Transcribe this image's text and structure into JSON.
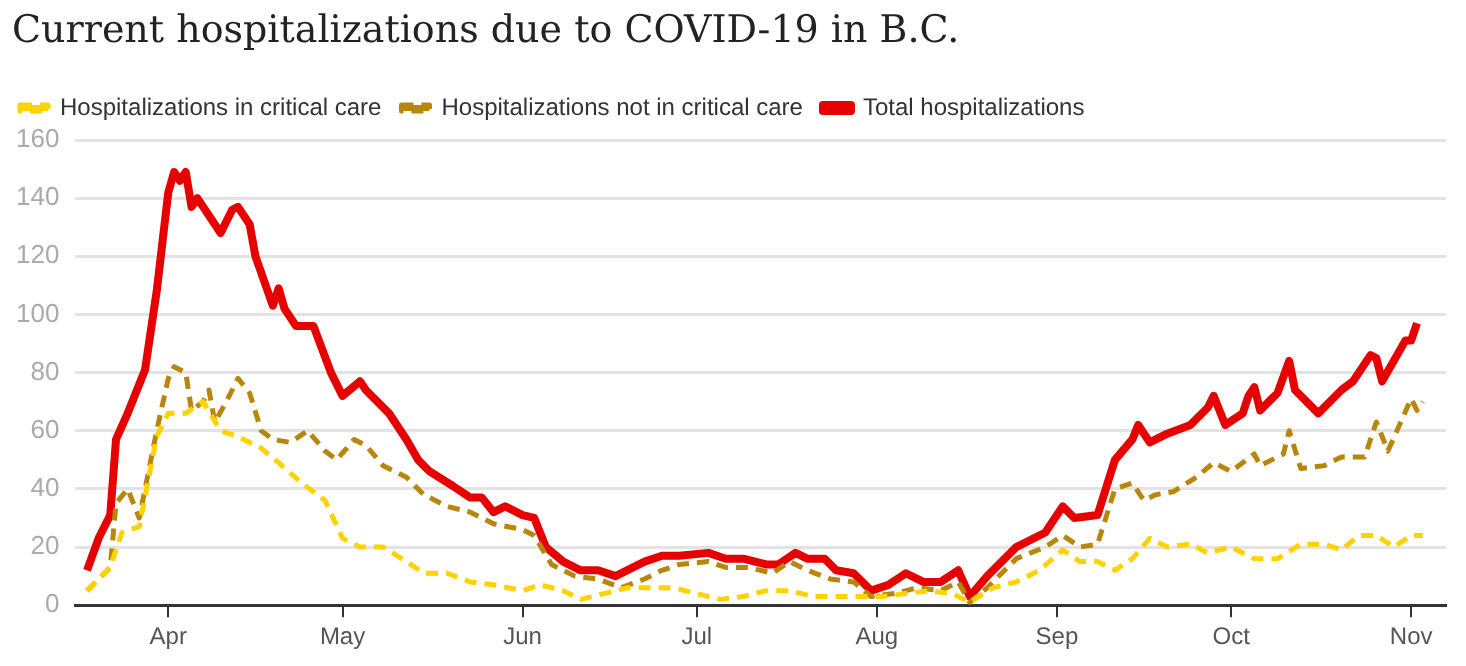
{
  "chart_data": {
    "type": "line",
    "title": "Current hospitalizations due to COVID-19 in B.C.",
    "xlim": [
      "--03-16",
      "--11-07"
    ],
    "xticks": [
      {
        "value": "--04-01",
        "label": "Apr"
      },
      {
        "value": "--05-01",
        "label": "May"
      },
      {
        "value": "--06-01",
        "label": "Jun"
      },
      {
        "value": "--07-01",
        "label": "Jul"
      },
      {
        "value": "--08-01",
        "label": "Aug"
      },
      {
        "value": "--09-01",
        "label": "Sep"
      },
      {
        "value": "--10-01",
        "label": "Oct"
      },
      {
        "value": "--11-01",
        "label": "Nov"
      }
    ],
    "ylim": [
      0,
      160
    ],
    "yticks": [
      0,
      20,
      40,
      60,
      80,
      100,
      120,
      140,
      160
    ],
    "grid": "y",
    "legend": "top left",
    "marker": "none",
    "series": [
      {
        "name": "Hospitalizations in critical care",
        "color": "#ffd200",
        "line_style": "dashed",
        "x": [
          "--03-18",
          "--03-22",
          "--03-24",
          "--03-27",
          "--03-30",
          "--04-01",
          "--04-04",
          "--04-07",
          "--04-10",
          "--04-13",
          "--04-17",
          "--04-20",
          "--04-24",
          "--04-28",
          "--05-01",
          "--05-04",
          "--05-08",
          "--05-12",
          "--05-15",
          "--05-19",
          "--05-23",
          "--05-27",
          "--06-01",
          "--06-04",
          "--06-08",
          "--06-11",
          "--06-15",
          "--06-19",
          "--06-23",
          "--06-27",
          "--07-01",
          "--07-05",
          "--07-09",
          "--07-13",
          "--07-17",
          "--07-21",
          "--07-25",
          "--07-29",
          "--08-02",
          "--08-06",
          "--08-10",
          "--08-14",
          "--08-17",
          "--08-21",
          "--08-25",
          "--08-29",
          "--09-02",
          "--09-05",
          "--09-08",
          "--09-11",
          "--09-14",
          "--09-17",
          "--09-20",
          "--09-24",
          "--09-27",
          "--10-01",
          "--10-05",
          "--10-09",
          "--10-13",
          "--10-17",
          "--10-20",
          "--10-23",
          "--10-26",
          "--10-29",
          "--11-01",
          "--11-03"
        ],
        "values": [
          5,
          13,
          25,
          27,
          58,
          66,
          66,
          70,
          60,
          58,
          54,
          49,
          42,
          36,
          23,
          20,
          20,
          15,
          11,
          11,
          8,
          7,
          5,
          7,
          5,
          2,
          4,
          6,
          6,
          6,
          4,
          2,
          3,
          5,
          5,
          3,
          3,
          3,
          3,
          4,
          5,
          4,
          1,
          6,
          8,
          12,
          19,
          15,
          15,
          12,
          16,
          23,
          20,
          21,
          18,
          20,
          16,
          16,
          21,
          21,
          19,
          24,
          24,
          20,
          24,
          24
        ]
      },
      {
        "name": "Hospitalizations not in critical care",
        "color": "#b8860b",
        "line_style": "dashed",
        "x": [
          "--03-18",
          "--03-22",
          "--03-23",
          "--03-25",
          "--03-27",
          "--03-30",
          "--04-01",
          "--04-02",
          "--04-04",
          "--04-05",
          "--04-07",
          "--04-08",
          "--04-09",
          "--04-11",
          "--04-13",
          "--04-15",
          "--04-17",
          "--04-19",
          "--04-22",
          "--04-25",
          "--04-28",
          "--04-30",
          "--05-03",
          "--05-05",
          "--05-08",
          "--05-12",
          "--05-15",
          "--05-19",
          "--05-23",
          "--05-27",
          "--06-01",
          "--06-03",
          "--06-06",
          "--06-10",
          "--06-14",
          "--06-18",
          "--06-22",
          "--06-25",
          "--06-28",
          "--07-03",
          "--07-06",
          "--07-10",
          "--07-14",
          "--07-17",
          "--07-20",
          "--07-24",
          "--07-28",
          "--07-31",
          "--08-04",
          "--08-08",
          "--08-12",
          "--08-15",
          "--08-17",
          "--08-20",
          "--08-25",
          "--08-30",
          "--09-02",
          "--09-05",
          "--09-08",
          "--09-11",
          "--09-14",
          "--09-16",
          "--09-18",
          "--09-21",
          "--09-25",
          "--09-28",
          "--10-01",
          "--10-05",
          "--10-06",
          "--10-10",
          "--10-11",
          "--10-13",
          "--10-17",
          "--10-20",
          "--10-24",
          "--10-26",
          "--10-28",
          "--11-01",
          "--11-02",
          "--11-03"
        ],
        "values": [
          5,
          13,
          35,
          40,
          30,
          60,
          78,
          82,
          80,
          67,
          70,
          74,
          63,
          70,
          78,
          73,
          60,
          57,
          56,
          60,
          53,
          50,
          57,
          55,
          48,
          44,
          38,
          34,
          32,
          28,
          26,
          24,
          14,
          10,
          9,
          6,
          9,
          12,
          14,
          15,
          13,
          13,
          11,
          15,
          12,
          9,
          8,
          3,
          4,
          6,
          5,
          8,
          1,
          6,
          16,
          20,
          24,
          20,
          21,
          40,
          42,
          36,
          38,
          39,
          44,
          49,
          46,
          52,
          48,
          52,
          60,
          47,
          48,
          51,
          51,
          63,
          53,
          71,
          67,
          70
        ]
      },
      {
        "name": "Total hospitalizations",
        "color": "#e60000",
        "line_style": "solid",
        "x": [
          "--03-18",
          "--03-20",
          "--03-22",
          "--03-23",
          "--03-25",
          "--03-28",
          "--03-30",
          "--04-01",
          "--04-02",
          "--04-03",
          "--04-04",
          "--04-05",
          "--04-06",
          "--04-10",
          "--04-12",
          "--04-13",
          "--04-15",
          "--04-16",
          "--04-19",
          "--04-20",
          "--04-21",
          "--04-23",
          "--04-26",
          "--04-29",
          "--05-01",
          "--05-04",
          "--05-05",
          "--05-09",
          "--05-12",
          "--05-14",
          "--05-16",
          "--05-20",
          "--05-23",
          "--05-25",
          "--05-27",
          "--05-29",
          "--06-01",
          "--06-03",
          "--06-05",
          "--06-08",
          "--06-11",
          "--06-14",
          "--06-17",
          "--06-22",
          "--06-25",
          "--06-28",
          "--07-03",
          "--07-06",
          "--07-09",
          "--07-13",
          "--07-15",
          "--07-18",
          "--07-20",
          "--07-23",
          "--07-25",
          "--07-28",
          "--07-31",
          "--08-03",
          "--08-06",
          "--08-09",
          "--08-12",
          "--08-15",
          "--08-17",
          "--08-20",
          "--08-25",
          "--08-30",
          "--09-02",
          "--09-04",
          "--09-08",
          "--09-11",
          "--09-14",
          "--09-15",
          "--09-17",
          "--09-20",
          "--09-24",
          "--09-27",
          "--09-28",
          "--09-30",
          "--10-03",
          "--10-04",
          "--10-05",
          "--10-06",
          "--10-09",
          "--10-11",
          "--10-12",
          "--10-16",
          "--10-20",
          "--10-22",
          "--10-25",
          "--10-26",
          "--10-27",
          "--10-31",
          "--11-01",
          "--11-02"
        ],
        "values": [
          12,
          23,
          31,
          57,
          66,
          81,
          108,
          142,
          149,
          146,
          149,
          137,
          140,
          128,
          136,
          137,
          131,
          120,
          103,
          109,
          102,
          96,
          96,
          80,
          72,
          77,
          74,
          66,
          57,
          50,
          46,
          41,
          37,
          37,
          32,
          34,
          31,
          30,
          20,
          15,
          12,
          12,
          10,
          15,
          17,
          17,
          18,
          16,
          16,
          14,
          14,
          18,
          16,
          16,
          12,
          11,
          5,
          7,
          11,
          8,
          8,
          12,
          3,
          10,
          20,
          25,
          34,
          30,
          31,
          50,
          57,
          62,
          56,
          59,
          62,
          68,
          72,
          62,
          66,
          72,
          75,
          67,
          73,
          84,
          74,
          66,
          74,
          77,
          86,
          85,
          77,
          91,
          91,
          97
        ]
      }
    ]
  }
}
